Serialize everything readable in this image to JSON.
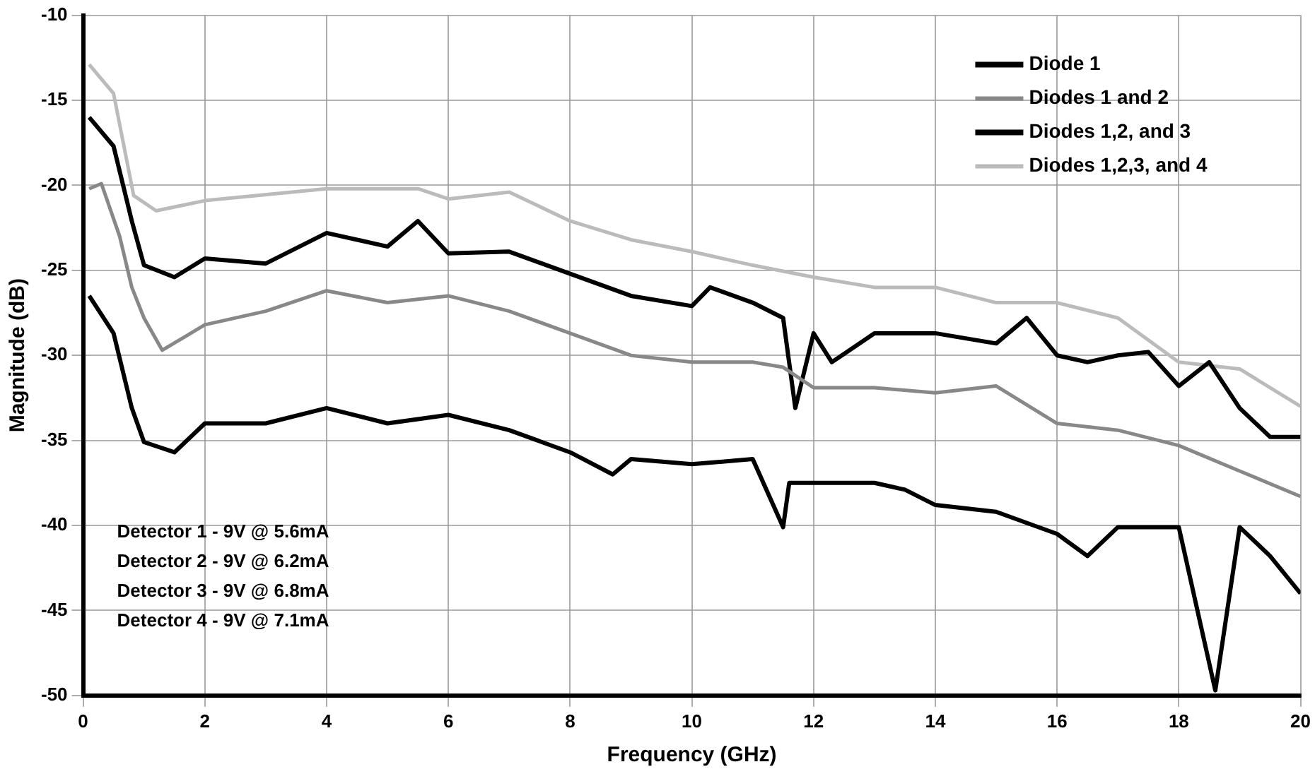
{
  "chart_data": {
    "type": "line",
    "xlabel": "Frequency (GHz)",
    "ylabel": "Magnitude (dB)",
    "xlim": [
      0,
      20
    ],
    "xticks": [
      0,
      2,
      4,
      6,
      8,
      10,
      12,
      14,
      16,
      18,
      20
    ],
    "ylim": [
      -50,
      -10
    ],
    "yticks": [
      -50,
      -45,
      -40,
      -35,
      -30,
      -25,
      -20,
      -15,
      -10
    ],
    "grid": true,
    "legend": "top right",
    "marker": "none",
    "annotations": [
      "Detector 1 - 9V @ 5.6mA",
      "Detector 2 - 9V @ 6.2mA",
      "Detector 3 - 9V @ 6.8mA",
      "Detector 4 - 9V @ 7.1mA"
    ],
    "series": [
      {
        "name": "Diode 1",
        "color": "#000000",
        "x": [
          0.1,
          0.5,
          0.8,
          1,
          1.5,
          2,
          3,
          4,
          5,
          6,
          7,
          8,
          8.7,
          9,
          10,
          11,
          11.5,
          11.6,
          12,
          13,
          13.5,
          14,
          15,
          16,
          16.5,
          17,
          18,
          18.6,
          19,
          19.5,
          20
        ],
        "values": [
          -26.5,
          -28.7,
          -33.1,
          -35.1,
          -35.7,
          -34,
          -34,
          -33.1,
          -34,
          -33.5,
          -34.4,
          -35.7,
          -37,
          -36.1,
          -36.4,
          -36.1,
          -40.1,
          -37.5,
          -37.5,
          -37.5,
          -37.9,
          -38.8,
          -39.2,
          -40.5,
          -41.8,
          -40.1,
          -40.1,
          -49.7,
          -40.1,
          -41.8,
          -44
        ]
      },
      {
        "name": "Diodes 1 and 2",
        "color": "#888888",
        "x": [
          0.1,
          0.3,
          0.6,
          0.8,
          1,
          1.3,
          2,
          3,
          4,
          5,
          6,
          7,
          8,
          9,
          10,
          11,
          11.5,
          12,
          13,
          14,
          15,
          16,
          17,
          18,
          19,
          20
        ],
        "values": [
          -20.2,
          -19.9,
          -23,
          -26,
          -27.8,
          -29.7,
          -28.2,
          -27.4,
          -26.2,
          -26.9,
          -26.5,
          -27.4,
          -28.7,
          -30,
          -30.4,
          -30.4,
          -30.7,
          -31.9,
          -31.9,
          -32.2,
          -31.8,
          -34,
          -34.4,
          -35.3,
          -36.8,
          -38.3
        ]
      },
      {
        "name": "Diodes 1,2, and 3",
        "color": "#000000",
        "x": [
          0.1,
          0.5,
          0.8,
          1,
          1.5,
          2,
          3,
          4,
          5,
          5.5,
          6,
          7,
          8,
          9,
          10,
          10.3,
          11,
          11.5,
          11.7,
          12,
          12.3,
          13,
          14,
          15,
          15.5,
          16,
          16.5,
          17,
          17.5,
          18,
          18.5,
          19,
          19.5,
          20
        ],
        "values": [
          -16,
          -17.7,
          -22.1,
          -24.7,
          -25.4,
          -24.3,
          -24.6,
          -22.8,
          -23.6,
          -22.1,
          -24,
          -23.9,
          -25.2,
          -26.5,
          -27.1,
          -26,
          -26.9,
          -27.8,
          -33.1,
          -28.7,
          -30.4,
          -28.7,
          -28.7,
          -29.3,
          -27.8,
          -30,
          -30.4,
          -30,
          -29.8,
          -31.8,
          -30.4,
          -33.1,
          -34.8,
          -34.8
        ]
      },
      {
        "name": "Diodes 1,2,3, and 4",
        "color": "#bbbbbb",
        "x": [
          0.1,
          0.5,
          0.83,
          1.2,
          2,
          4,
          5.5,
          6,
          7,
          8,
          9,
          10,
          11,
          12,
          13,
          14,
          15,
          16,
          17,
          18,
          19,
          20
        ],
        "values": [
          -12.9,
          -14.6,
          -20.6,
          -21.5,
          -20.9,
          -20.2,
          -20.2,
          -20.8,
          -20.4,
          -22.1,
          -23.2,
          -23.9,
          -24.7,
          -25.4,
          -26,
          -26,
          -26.9,
          -26.9,
          -27.8,
          -30.4,
          -30.8,
          -33
        ]
      }
    ]
  }
}
